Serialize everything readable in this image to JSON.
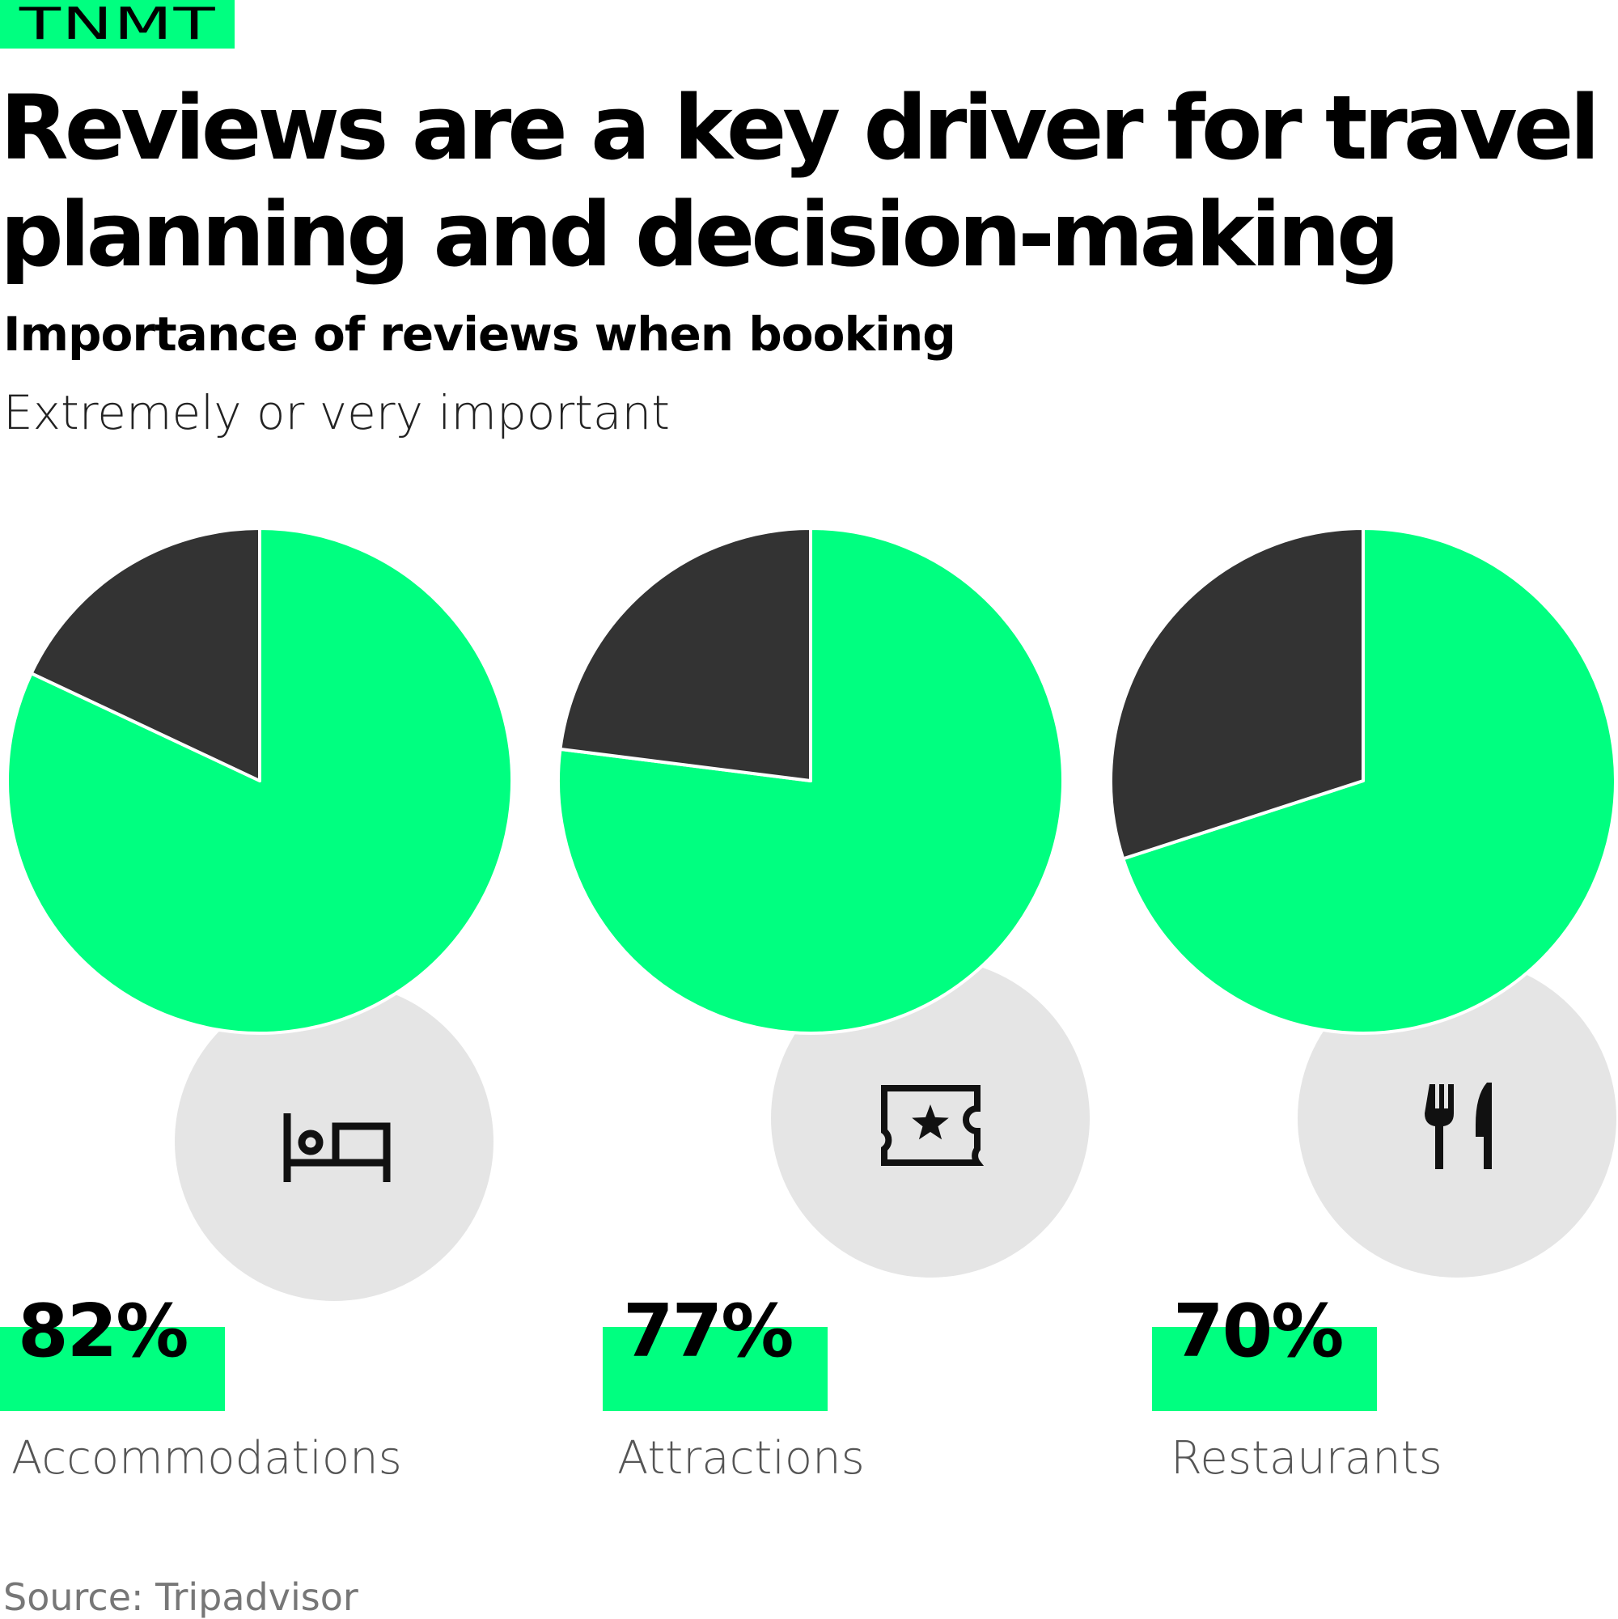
{
  "logo": "TNMT",
  "title": "Reviews are a key driver for travel planning and decision-making",
  "subtitle": "Importance of reviews when booking",
  "measure": "Extremely or very important",
  "source": "Source: Tripadvisor",
  "colors": {
    "accent": "#00ff80",
    "remainder": "#333333",
    "icon_circle": "#e5e5e5",
    "icon": "#111111"
  },
  "chart_data": {
    "type": "pie",
    "series_label": "Extremely or very important",
    "categories": [
      "Accommodations",
      "Attractions",
      "Restaurants"
    ],
    "values": [
      82,
      77,
      70
    ],
    "unit": "%",
    "value_labels": [
      "82%",
      "77%",
      "70%"
    ],
    "icons": [
      "bed-icon",
      "ticket-icon",
      "fork-knife-icon"
    ]
  }
}
